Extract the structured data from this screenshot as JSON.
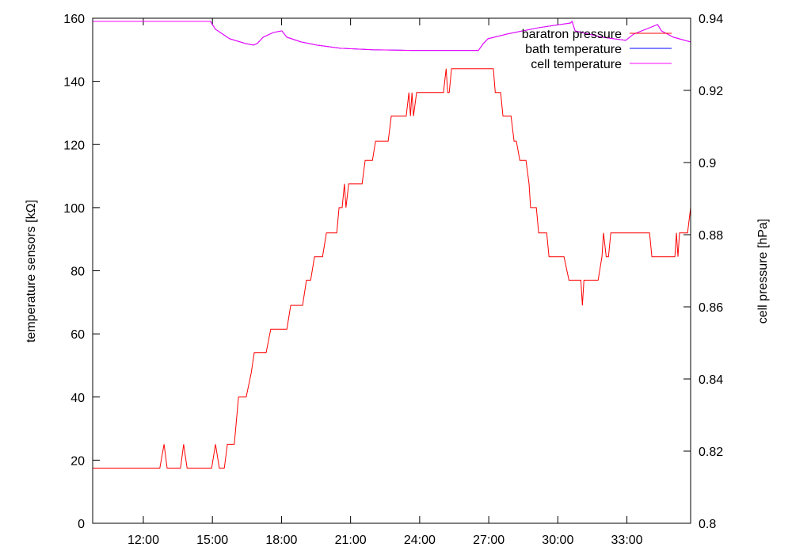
{
  "chart_data": {
    "type": "line",
    "ylabel": "temperature sensors [kΩ]",
    "y2label": "cell pressure [hPa]",
    "xlim": [
      588,
      2146
    ],
    "xticks": [
      {
        "value": 720,
        "label": "12:00"
      },
      {
        "value": 900,
        "label": "15:00"
      },
      {
        "value": 1080,
        "label": "18:00"
      },
      {
        "value": 1260,
        "label": "21:00"
      },
      {
        "value": 1440,
        "label": "24:00"
      },
      {
        "value": 1620,
        "label": "27:00"
      },
      {
        "value": 1800,
        "label": "30:00"
      },
      {
        "value": 1980,
        "label": "33:00"
      }
    ],
    "ylim": [
      0,
      160
    ],
    "yticks": [
      0,
      20,
      40,
      60,
      80,
      100,
      120,
      140,
      160
    ],
    "y2lim": [
      0.8,
      0.94
    ],
    "y2ticks": [
      0.8,
      0.82,
      0.84,
      0.86,
      0.88,
      0.9,
      0.92,
      0.94
    ],
    "legend": "top right",
    "series": [
      {
        "name": "baratron pressure",
        "color": "#ff0000",
        "axis": "y2",
        "x": [
          588,
          763,
          774,
          782,
          817,
          825,
          834,
          898,
          908,
          918,
          931,
          939,
          957,
          968,
          988,
          1001,
          1009,
          1040,
          1052,
          1094,
          1104,
          1135,
          1145,
          1156,
          1166,
          1187,
          1197,
          1224,
          1230,
          1238,
          1244,
          1248,
          1255,
          1290,
          1298,
          1317,
          1325,
          1358,
          1366,
          1405,
          1412,
          1416,
          1420,
          1424,
          1432,
          1502,
          1509,
          1513,
          1517,
          1523,
          1632,
          1637,
          1651,
          1657,
          1678,
          1686,
          1692,
          1701,
          1717,
          1725,
          1729,
          1744,
          1750,
          1771,
          1777,
          1816,
          1829,
          1860,
          1864,
          1868,
          1905,
          1915,
          1919,
          1926,
          1932,
          1938,
          2039,
          2045,
          2105,
          2109,
          2113,
          2117,
          2138,
          2146
        ],
        "values": [
          0.8153,
          0.8153,
          0.8219,
          0.8153,
          0.8153,
          0.8219,
          0.8153,
          0.8153,
          0.8219,
          0.8153,
          0.8153,
          0.8219,
          0.8219,
          0.835,
          0.835,
          0.8416,
          0.8473,
          0.8473,
          0.8538,
          0.8538,
          0.8604,
          0.8604,
          0.8674,
          0.8674,
          0.8739,
          0.8739,
          0.8805,
          0.8805,
          0.8875,
          0.8875,
          0.8941,
          0.8875,
          0.8941,
          0.8941,
          0.9006,
          0.9006,
          0.9059,
          0.9059,
          0.9129,
          0.9129,
          0.9194,
          0.9129,
          0.9194,
          0.9129,
          0.9194,
          0.9194,
          0.926,
          0.9194,
          0.9194,
          0.926,
          0.926,
          0.9194,
          0.9194,
          0.9129,
          0.9129,
          0.9059,
          0.9059,
          0.9006,
          0.9006,
          0.8941,
          0.8875,
          0.8875,
          0.8805,
          0.8805,
          0.8739,
          0.8739,
          0.8674,
          0.8674,
          0.8604,
          0.8674,
          0.8674,
          0.8739,
          0.8805,
          0.8739,
          0.8739,
          0.8805,
          0.8805,
          0.8739,
          0.8739,
          0.8805,
          0.8739,
          0.8805,
          0.8805,
          0.8875
        ]
      },
      {
        "name": "bath temperature",
        "color": "#0000ff",
        "axis": "y",
        "x": [
          588,
          895,
          900,
          908,
          945,
          986,
          1007,
          1017,
          1032,
          1059,
          1081,
          1094,
          1131,
          1172,
          1234,
          1317,
          1420,
          1544,
          1593,
          1606,
          1618,
          1668,
          1750,
          1833,
          1837,
          1845,
          1915,
          1977,
          1998,
          2060,
          2070,
          2101,
          2146
        ],
        "values": [
          159,
          159,
          158,
          156.5,
          153.5,
          152,
          151.5,
          152,
          154,
          155.5,
          156,
          154,
          152.5,
          151.5,
          150.5,
          150,
          149.8,
          149.8,
          149.8,
          152,
          153.5,
          155,
          157,
          158.5,
          159,
          156,
          154,
          153,
          155,
          158,
          156,
          154,
          152.5
        ]
      },
      {
        "name": "cell temperature",
        "color": "#ff00ff",
        "axis": "y",
        "x": [
          588,
          895,
          900,
          908,
          945,
          986,
          1007,
          1017,
          1032,
          1059,
          1081,
          1094,
          1131,
          1172,
          1234,
          1317,
          1420,
          1544,
          1593,
          1606,
          1618,
          1668,
          1750,
          1833,
          1837,
          1845,
          1915,
          1977,
          1998,
          2060,
          2070,
          2101,
          2146
        ],
        "values": [
          159,
          159,
          158,
          156.5,
          153.5,
          152,
          151.5,
          152,
          154,
          155.5,
          156,
          154,
          152.5,
          151.5,
          150.5,
          150,
          149.8,
          149.8,
          149.8,
          152,
          153.5,
          155,
          157,
          158.5,
          159,
          156,
          154,
          153,
          155,
          158,
          156,
          154,
          152.5
        ]
      }
    ]
  }
}
